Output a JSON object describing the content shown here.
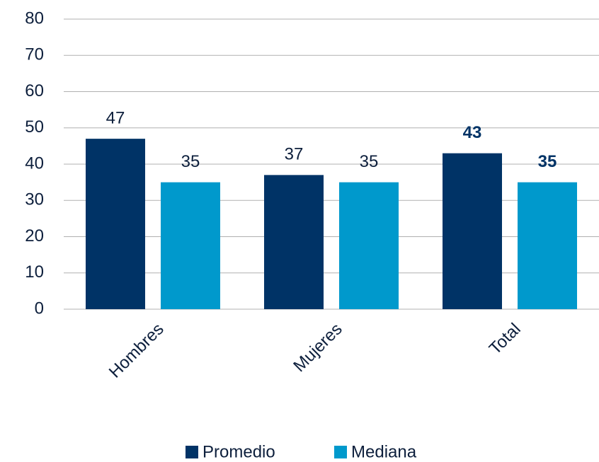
{
  "chart_data": {
    "type": "bar",
    "categories": [
      "Hombres",
      "Mujeres",
      "Total"
    ],
    "series": [
      {
        "name": "Promedio",
        "color": "#003366",
        "values": [
          47,
          37,
          43
        ]
      },
      {
        "name": "Mediana",
        "color": "#0099cc",
        "values": [
          35,
          35,
          35
        ]
      }
    ],
    "ylim": [
      0,
      80
    ],
    "yticks": [
      0,
      10,
      20,
      30,
      40,
      50,
      60,
      70,
      80
    ],
    "grid": true,
    "legend": "bottom"
  }
}
